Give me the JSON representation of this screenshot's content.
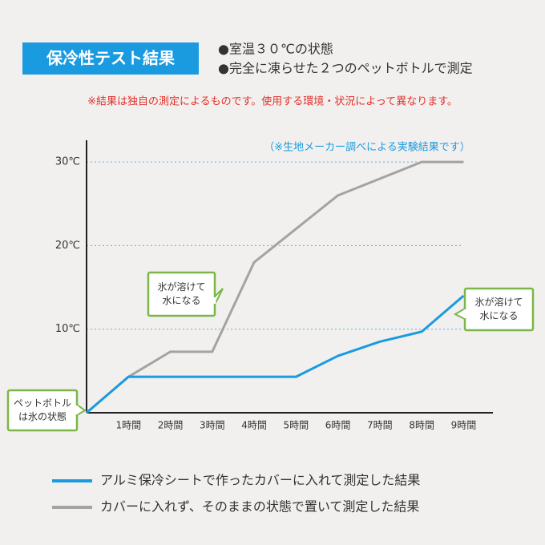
{
  "chart_data": {
    "type": "line",
    "title": "保冷性テスト結果",
    "notes": [
      "●室温３０℃の状態",
      "●完全に凍らせた２つのペットボトルで測定"
    ],
    "disclaimer": "※結果は独自の測定によるものです。使用する環境・状況によって異なります。",
    "source_note": "（※生地メーカー調べによる実験結果です）",
    "x": [
      0,
      1,
      2,
      3,
      4,
      5,
      6,
      7,
      8,
      9
    ],
    "xlim": [
      0,
      9.7
    ],
    "xticks": [
      {
        "value": 1,
        "label": "1時間"
      },
      {
        "value": 2,
        "label": "2時間"
      },
      {
        "value": 3,
        "label": "3時間"
      },
      {
        "value": 4,
        "label": "4時間"
      },
      {
        "value": 5,
        "label": "5時間"
      },
      {
        "value": 6,
        "label": "6時間"
      },
      {
        "value": 7,
        "label": "7時間"
      },
      {
        "value": 8,
        "label": "8時間"
      },
      {
        "value": 9,
        "label": "9時間"
      }
    ],
    "ylim": [
      0,
      32.6
    ],
    "yticks": [
      {
        "value": 10,
        "label": "10℃"
      },
      {
        "value": 20,
        "label": "20℃"
      },
      {
        "value": 30,
        "label": "30℃"
      }
    ],
    "grid": true,
    "series": [
      {
        "name": "アルミ保冷シートで作ったカバーに入れて測定した結果",
        "color": "#1a9be0",
        "values": [
          0,
          4.3,
          4.3,
          4.3,
          4.3,
          4.3,
          6.8,
          8.5,
          9.7,
          14
        ]
      },
      {
        "name": "カバーに入れず、そのままの状態で置いて測定した結果",
        "color": "#a3a3a3",
        "values": [
          0,
          4.3,
          7.3,
          7.3,
          18,
          22,
          26,
          28,
          30,
          30
        ]
      }
    ],
    "annotations": [
      {
        "lines": [
          "ペットボトル",
          "は氷の状態"
        ]
      },
      {
        "lines": [
          "氷が溶けて",
          "水になる"
        ]
      },
      {
        "lines": [
          "氷が溶けて",
          "水になる"
        ]
      }
    ]
  }
}
